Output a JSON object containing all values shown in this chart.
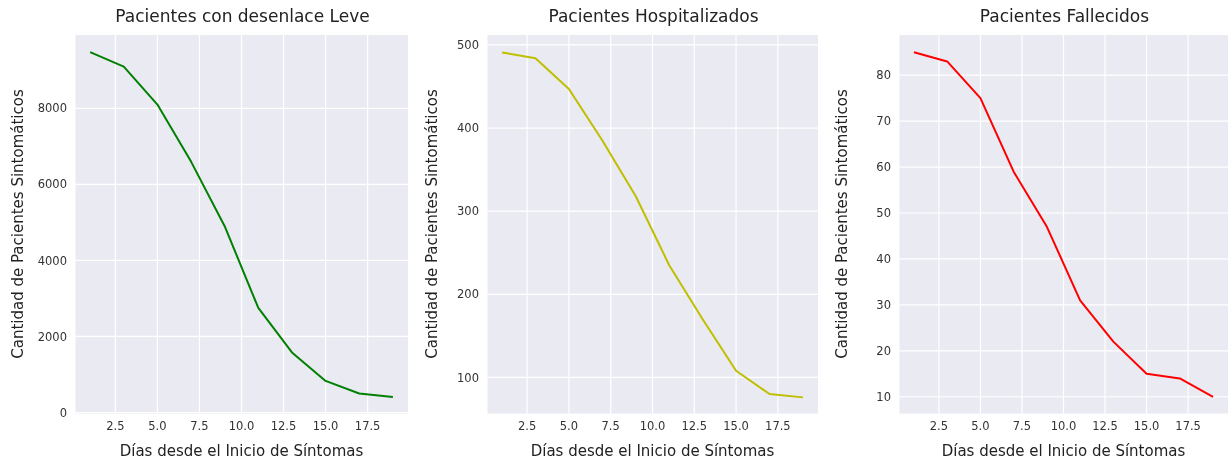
{
  "chart_data": [
    {
      "type": "line",
      "title": "Pacientes con desenlace Leve",
      "xlabel": "Días desde el Inicio de Síntomas",
      "ylabel": "Cantidad de Pacientes Sintomáticos",
      "x": [
        1,
        3,
        5,
        7,
        9,
        11,
        13,
        15,
        17,
        19
      ],
      "series": [
        {
          "color": "#008000",
          "values": [
            9480,
            9100,
            8100,
            6600,
            4900,
            2750,
            1580,
            830,
            500,
            410
          ]
        }
      ],
      "xlim": [
        0.1,
        19.9
      ],
      "xticks": [
        2.5,
        {
          "value": 5,
          "label": "5.0"
        },
        7.5,
        {
          "value": 10,
          "label": "10.0"
        },
        12.5,
        {
          "value": 15,
          "label": "15.0"
        },
        17.5
      ],
      "ylim": [
        -40,
        9930
      ],
      "yticks": [
        0,
        2000,
        4000,
        6000,
        8000
      ],
      "grid": true
    },
    {
      "type": "line",
      "title": "Pacientes Hospitalizados",
      "xlabel": "Días desde el Inicio de Síntomas",
      "ylabel": "Cantidad de Pacientes Sintomáticos",
      "x": [
        1,
        3,
        5,
        7,
        9,
        11,
        13,
        15,
        17,
        19
      ],
      "series": [
        {
          "color": "#bfbf00",
          "values": [
            491,
            484,
            447,
            385,
            318,
            235,
            170,
            108,
            80,
            76
          ]
        }
      ],
      "xlim": [
        0.1,
        19.9
      ],
      "xticks": [
        2.5,
        {
          "value": 5,
          "label": "5.0"
        },
        7.5,
        {
          "value": 10,
          "label": "10.0"
        },
        12.5,
        {
          "value": 15,
          "label": "15.0"
        },
        17.5
      ],
      "ylim": [
        56,
        512
      ],
      "yticks": [
        100,
        200,
        300,
        400,
        500
      ],
      "grid": true
    },
    {
      "type": "line",
      "title": "Pacientes Fallecidos",
      "xlabel": "Días desde el Inicio de Síntomas",
      "ylabel": "Cantidad de Pacientes Sintomáticos",
      "x": [
        1,
        3,
        5,
        7,
        9,
        11,
        13,
        15,
        17,
        19
      ],
      "series": [
        {
          "color": "#ff0000",
          "values": [
            85,
            83,
            75,
            59,
            47,
            31,
            22,
            15,
            14,
            10
          ]
        }
      ],
      "xlim": [
        0.1,
        19.9
      ],
      "xticks": [
        2.5,
        {
          "value": 5,
          "label": "5.0"
        },
        7.5,
        {
          "value": 10,
          "label": "10.0"
        },
        12.5,
        {
          "value": 15,
          "label": "15.0"
        },
        17.5
      ],
      "ylim": [
        6.25,
        88.75
      ],
      "yticks": [
        10,
        20,
        30,
        40,
        50,
        60,
        70,
        80
      ],
      "grid": true
    }
  ]
}
